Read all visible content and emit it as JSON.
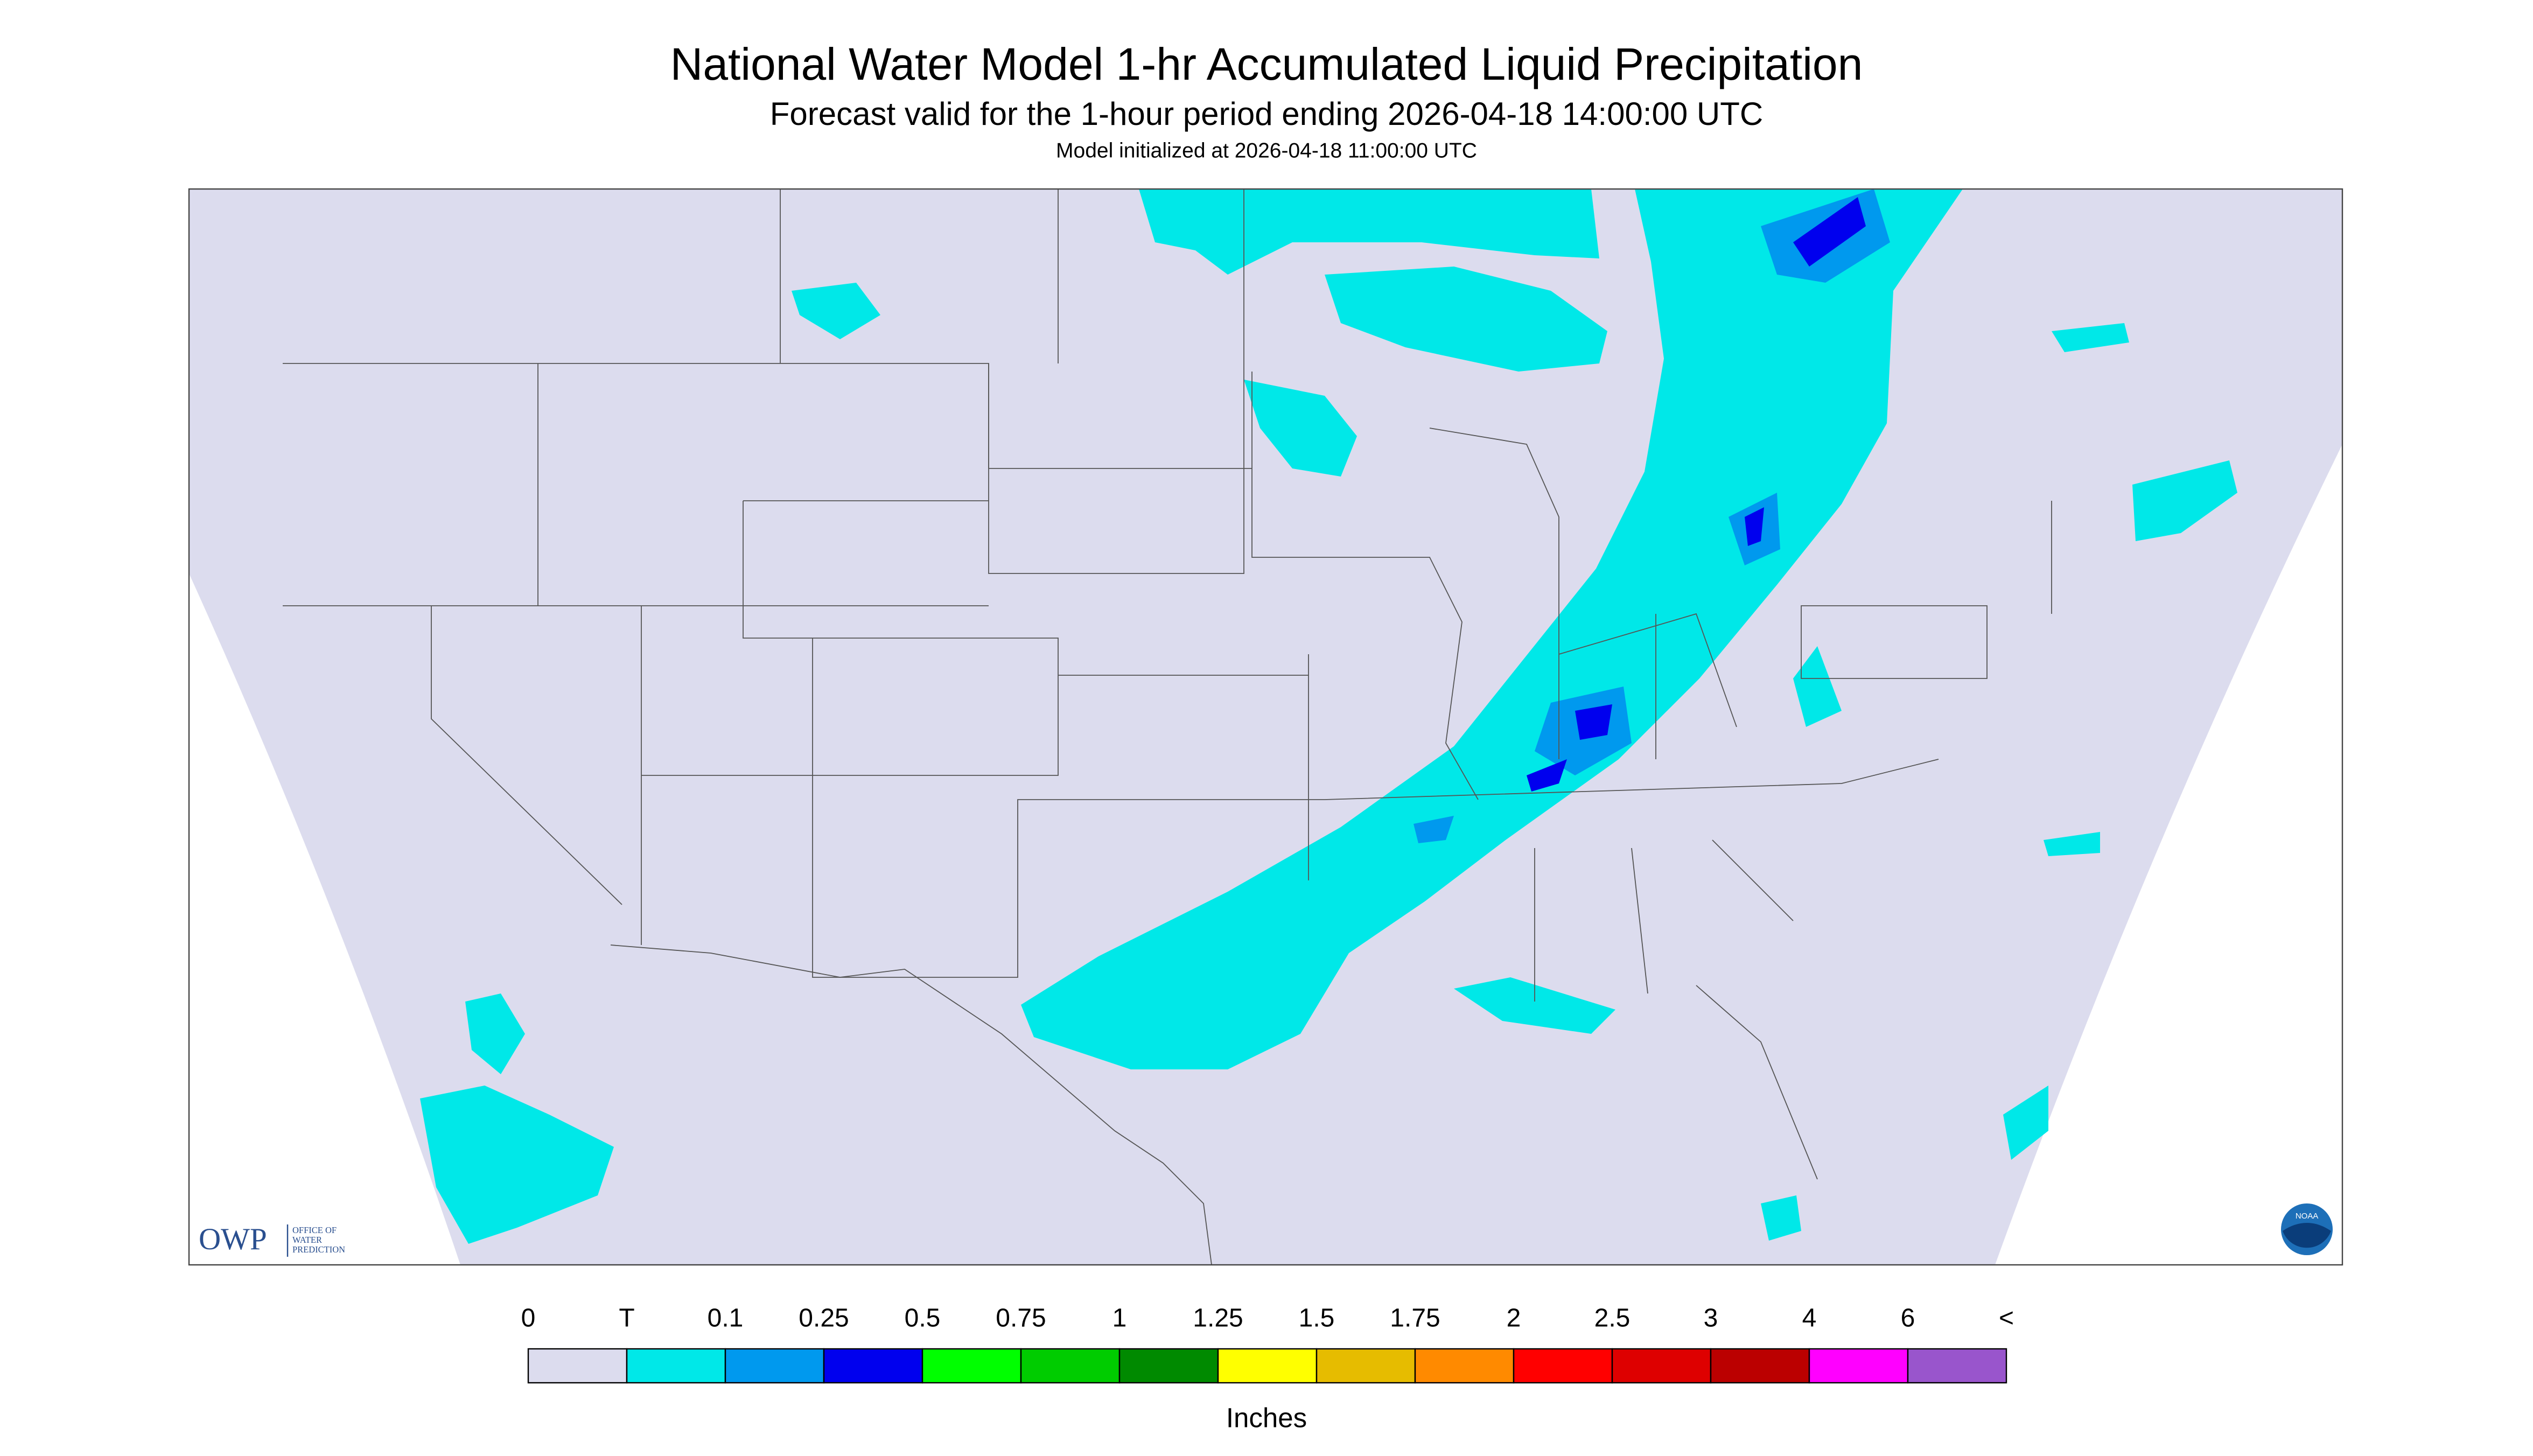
{
  "header": {
    "title": "National Water Model 1-hr Accumulated Liquid Precipitation",
    "subtitle": "Forecast valid for the 1-hour period ending 2026-04-18 14:00:00 UTC",
    "note": "Model initialized at 2026-04-18 11:00:00 UTC"
  },
  "legend": {
    "labels": [
      "0",
      "T",
      "0.1",
      "0.25",
      "0.5",
      "0.75",
      "1",
      "1.25",
      "1.5",
      "1.75",
      "2",
      "2.5",
      "3",
      "4",
      "6",
      "<"
    ],
    "colors": [
      "#dcdcee",
      "#00e8e8",
      "#0099ee",
      "#0000ee",
      "#00ff00",
      "#00cc00",
      "#008a00",
      "#ffff00",
      "#e6bc00",
      "#ff8a00",
      "#ff0000",
      "#de0000",
      "#bb0000",
      "#ff00ff",
      "#9955cc"
    ],
    "units": "Inches"
  },
  "logo": {
    "mark": "OWP",
    "text": [
      "OFFICE OF",
      "WATER",
      "PREDICTION"
    ],
    "agency": "NOAA"
  }
}
